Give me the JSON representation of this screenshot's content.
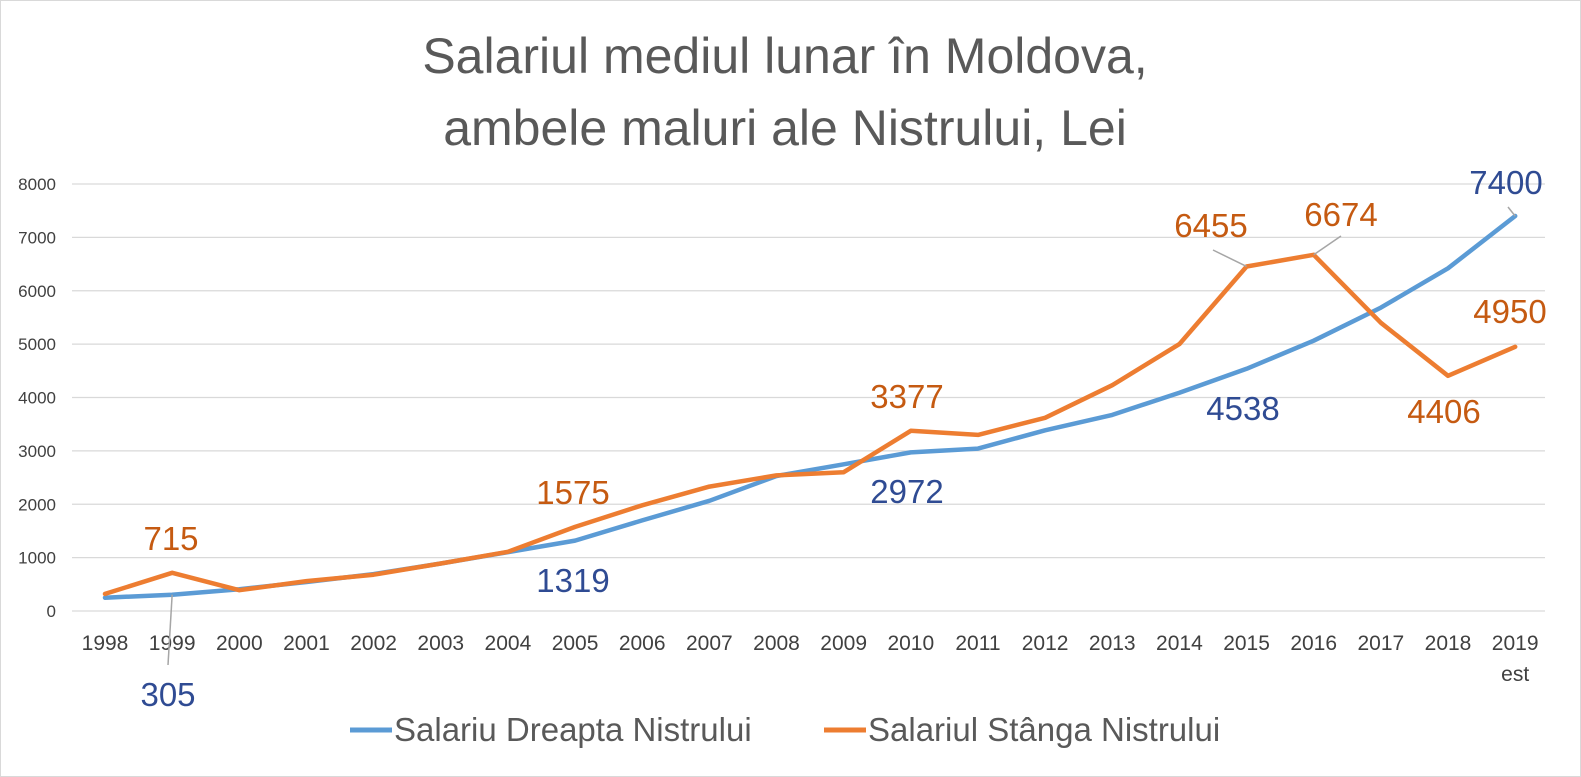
{
  "chart_data": {
    "type": "line",
    "title": [
      "Salariul mediul lunar în Moldova,",
      "ambele maluri ale Nistrului, Lei"
    ],
    "categories": [
      "1998",
      "1999",
      "2000",
      "2001",
      "2002",
      "2003",
      "2004",
      "2005",
      "2006",
      "2007",
      "2008",
      "2009",
      "2010",
      "2011",
      "2012",
      "2013",
      "2014",
      "2015",
      "2016",
      "2017",
      "2018",
      "2019"
    ],
    "category_sublabels": {
      "2019": "est"
    },
    "ylim": [
      0,
      8000
    ],
    "yticks": [
      0,
      1000,
      2000,
      3000,
      4000,
      5000,
      6000,
      7000,
      8000
    ],
    "grid": true,
    "legend_position": "bottom",
    "series": [
      {
        "name": "Salariu Dreapta Nistrului",
        "color": "#5b9bd5",
        "label_color": "#2f4b93",
        "values": [
          250,
          305,
          408,
          543,
          691,
          890,
          1103,
          1319,
          1697,
          2065,
          2530,
          2748,
          2972,
          3042,
          3386,
          3674,
          4089,
          4538,
          5064,
          5684,
          6420,
          7400
        ]
      },
      {
        "name": "Salariul Stânga Nistrului",
        "color": "#ed7d31",
        "label_color": "#c55a11",
        "values": [
          320,
          715,
          390,
          560,
          680,
          890,
          1110,
          1575,
          1980,
          2330,
          2540,
          2600,
          3377,
          3300,
          3620,
          4230,
          5000,
          6455,
          6674,
          5400,
          4406,
          4950
        ]
      }
    ],
    "annotations": [
      {
        "series": 0,
        "index": 1,
        "text": "305"
      },
      {
        "series": 0,
        "index": 7,
        "text": "1319"
      },
      {
        "series": 0,
        "index": 12,
        "text": "2972"
      },
      {
        "series": 0,
        "index": 17,
        "text": "4538"
      },
      {
        "series": 0,
        "index": 21,
        "text": "7400"
      },
      {
        "series": 1,
        "index": 1,
        "text": "715"
      },
      {
        "series": 1,
        "index": 7,
        "text": "1575"
      },
      {
        "series": 1,
        "index": 12,
        "text": "3377"
      },
      {
        "series": 1,
        "index": 17,
        "text": "6455"
      },
      {
        "series": 1,
        "index": 18,
        "text": "6674"
      },
      {
        "series": 1,
        "index": 20,
        "text": "4406"
      },
      {
        "series": 1,
        "index": 21,
        "text": "4950"
      }
    ]
  }
}
